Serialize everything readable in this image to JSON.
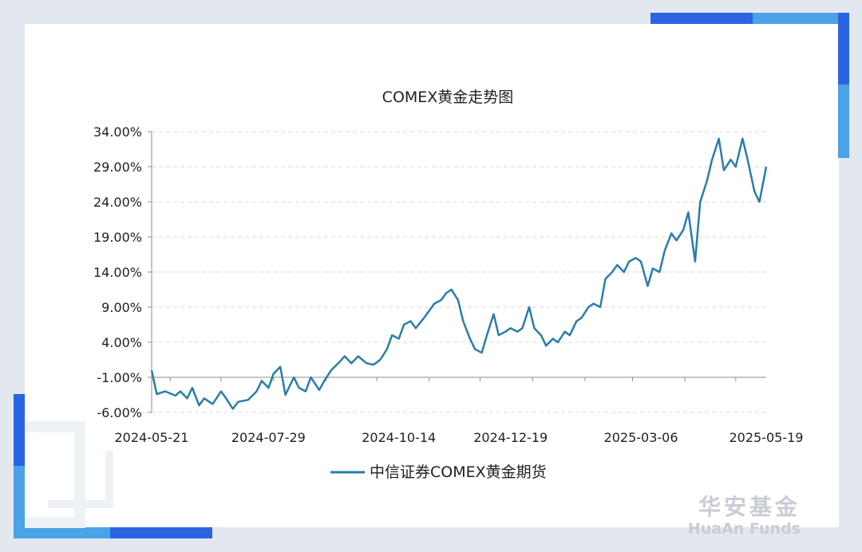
{
  "brand": {
    "cn": "华安基金",
    "en": "HuaAn Funds"
  },
  "colors": {
    "series": "#2a7ea6",
    "accent_blue": "#2b64e3",
    "accent_light": "#4aa3e6"
  },
  "chart_data": {
    "type": "line",
    "title": "COMEX黄金走势图",
    "xlabel": "",
    "ylabel": "",
    "ylim": [
      -6,
      34
    ],
    "y_ticks": [
      "34.00%",
      "29.00%",
      "24.00%",
      "19.00%",
      "14.00%",
      "9.00%",
      "4.00%",
      "-1.00%",
      "-6.00%"
    ],
    "x_ticks": [
      "2024-05-21",
      "2024-07-29",
      "2024-10-14",
      "2024-12-19",
      "2025-03-06",
      "2025-05-19"
    ],
    "x_range": [
      "2024-05-21",
      "2025-05-19"
    ],
    "grid": "horizontal dashed",
    "legend": "bottom-center",
    "series": [
      {
        "name": "中信证券COMEX黄金期货",
        "points": [
          [
            "2024-05-21",
            0.0
          ],
          [
            "2024-05-24",
            -3.4
          ],
          [
            "2024-05-29",
            -3.0
          ],
          [
            "2024-06-04",
            -3.6
          ],
          [
            "2024-06-07",
            -3.0
          ],
          [
            "2024-06-11",
            -4.0
          ],
          [
            "2024-06-14",
            -2.5
          ],
          [
            "2024-06-18",
            -5.0
          ],
          [
            "2024-06-21",
            -4.0
          ],
          [
            "2024-06-26",
            -4.8
          ],
          [
            "2024-07-01",
            -3.0
          ],
          [
            "2024-07-04",
            -4.0
          ],
          [
            "2024-07-08",
            -5.5
          ],
          [
            "2024-07-11",
            -4.5
          ],
          [
            "2024-07-17",
            -4.2
          ],
          [
            "2024-07-22",
            -3.0
          ],
          [
            "2024-07-25",
            -1.5
          ],
          [
            "2024-07-29",
            -2.5
          ],
          [
            "2024-08-01",
            -0.5
          ],
          [
            "2024-08-05",
            0.5
          ],
          [
            "2024-08-08",
            -3.5
          ],
          [
            "2024-08-13",
            -1.0
          ],
          [
            "2024-08-16",
            -2.5
          ],
          [
            "2024-08-20",
            -3.0
          ],
          [
            "2024-08-23",
            -1.0
          ],
          [
            "2024-08-28",
            -2.8
          ],
          [
            "2024-08-31",
            -1.5
          ],
          [
            "2024-09-04",
            0.0
          ],
          [
            "2024-09-09",
            1.2
          ],
          [
            "2024-09-12",
            2.0
          ],
          [
            "2024-09-16",
            1.0
          ],
          [
            "2024-09-20",
            2.0
          ],
          [
            "2024-09-25",
            1.0
          ],
          [
            "2024-09-29",
            0.8
          ],
          [
            "2024-10-03",
            1.5
          ],
          [
            "2024-10-07",
            3.0
          ],
          [
            "2024-10-10",
            5.0
          ],
          [
            "2024-10-14",
            4.5
          ],
          [
            "2024-10-17",
            6.5
          ],
          [
            "2024-10-21",
            7.0
          ],
          [
            "2024-10-24",
            6.0
          ],
          [
            "2024-10-29",
            7.5
          ],
          [
            "2024-11-01",
            8.5
          ],
          [
            "2024-11-04",
            9.5
          ],
          [
            "2024-11-08",
            10.0
          ],
          [
            "2024-11-11",
            11.0
          ],
          [
            "2024-11-14",
            11.5
          ],
          [
            "2024-11-18",
            10.0
          ],
          [
            "2024-11-21",
            7.0
          ],
          [
            "2024-11-25",
            4.5
          ],
          [
            "2024-11-28",
            3.0
          ],
          [
            "2024-12-02",
            2.5
          ],
          [
            "2024-12-05",
            5.0
          ],
          [
            "2024-12-09",
            8.0
          ],
          [
            "2024-12-12",
            5.0
          ],
          [
            "2024-12-16",
            5.5
          ],
          [
            "2024-12-19",
            6.0
          ],
          [
            "2024-12-23",
            5.5
          ],
          [
            "2024-12-26",
            6.0
          ],
          [
            "2024-12-30",
            9.0
          ],
          [
            "2025-01-02",
            6.0
          ],
          [
            "2025-01-06",
            5.0
          ],
          [
            "2025-01-09",
            3.5
          ],
          [
            "2025-01-13",
            4.5
          ],
          [
            "2025-01-16",
            4.0
          ],
          [
            "2025-01-20",
            5.5
          ],
          [
            "2025-01-23",
            5.0
          ],
          [
            "2025-01-27",
            7.0
          ],
          [
            "2025-01-30",
            7.5
          ],
          [
            "2025-02-03",
            9.0
          ],
          [
            "2025-02-06",
            9.5
          ],
          [
            "2025-02-10",
            9.0
          ],
          [
            "2025-02-13",
            13.0
          ],
          [
            "2025-02-17",
            14.0
          ],
          [
            "2025-02-20",
            15.0
          ],
          [
            "2025-02-24",
            14.0
          ],
          [
            "2025-02-27",
            15.5
          ],
          [
            "2025-03-03",
            16.0
          ],
          [
            "2025-03-06",
            15.5
          ],
          [
            "2025-03-10",
            12.0
          ],
          [
            "2025-03-13",
            14.5
          ],
          [
            "2025-03-17",
            14.0
          ],
          [
            "2025-03-20",
            17.0
          ],
          [
            "2025-03-24",
            19.5
          ],
          [
            "2025-03-27",
            18.5
          ],
          [
            "2025-03-31",
            20.0
          ],
          [
            "2025-04-03",
            22.5
          ],
          [
            "2025-04-07",
            15.5
          ],
          [
            "2025-04-10",
            24.0
          ],
          [
            "2025-04-14",
            27.0
          ],
          [
            "2025-04-17",
            30.0
          ],
          [
            "2025-04-21",
            33.0
          ],
          [
            "2025-04-24",
            28.5
          ],
          [
            "2025-04-28",
            30.0
          ],
          [
            "2025-05-01",
            29.0
          ],
          [
            "2025-05-05",
            33.0
          ],
          [
            "2025-05-08",
            30.0
          ],
          [
            "2025-05-12",
            25.5
          ],
          [
            "2025-05-15",
            24.0
          ],
          [
            "2025-05-19",
            29.0
          ]
        ]
      }
    ]
  }
}
